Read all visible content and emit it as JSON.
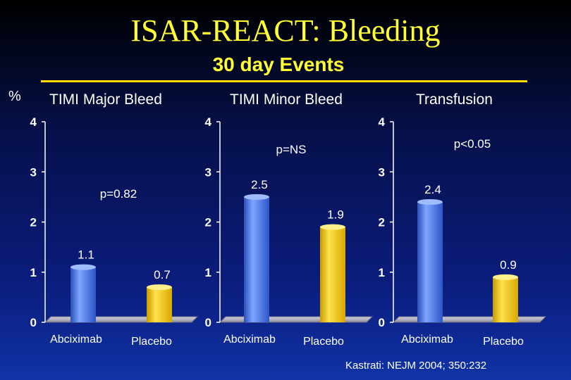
{
  "slide": {
    "title": "ISAR-REACT: Bleeding",
    "subtitle": "30 day Events",
    "y_unit": "%",
    "citation": "Kastrati: NEJM 2004; 350:232"
  },
  "colors": {
    "title": "#ffff33",
    "abciximab": "#4d7ce8",
    "placebo": "#f2c300",
    "axis_floor": "#b8b8c8"
  },
  "chart_data": [
    {
      "type": "bar",
      "title": "TIMI Major Bleed",
      "categories": [
        "Abciximab",
        "Placebo"
      ],
      "values": [
        1.1,
        0.7
      ],
      "value_labels": [
        "1.1",
        "0.7"
      ],
      "annotation": "p=0.82",
      "yticks": [
        "0",
        "1",
        "2",
        "3",
        "4"
      ],
      "ylim": [
        0,
        4
      ],
      "ylabel": "%"
    },
    {
      "type": "bar",
      "title": "TIMI Minor Bleed",
      "categories": [
        "Abciximab",
        "Placebo"
      ],
      "values": [
        2.5,
        1.9
      ],
      "value_labels": [
        "2.5",
        "1.9"
      ],
      "annotation": "p=NS",
      "yticks": [
        "0",
        "1",
        "2",
        "3",
        "4"
      ],
      "ylim": [
        0,
        4
      ],
      "ylabel": "%"
    },
    {
      "type": "bar",
      "title": "Transfusion",
      "categories": [
        "Abciximab",
        "Placebo"
      ],
      "values": [
        2.4,
        0.9
      ],
      "value_labels": [
        "2.4",
        "0.9"
      ],
      "annotation": "p<0.05",
      "yticks": [
        "0",
        "1",
        "2",
        "3",
        "4"
      ],
      "ylim": [
        0,
        4
      ],
      "ylabel": "%"
    }
  ]
}
